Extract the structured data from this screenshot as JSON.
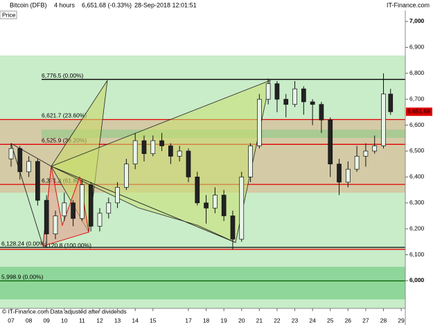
{
  "header": {
    "symbol": "Bitcoin (DFB)",
    "timeframe": "4 hours",
    "quote": "6,651.68 (-0.33%)",
    "timestamp": "28-Sep-2018 12:01:51",
    "site": "IT-Finance.com",
    "panel": "Price"
  },
  "footer": "© IT-Finance.com  Data adjusted after dividends",
  "chart_data": {
    "type": "candlestick",
    "x": [
      0,
      0.5,
      1,
      1.5,
      2,
      2.5,
      3,
      3.5,
      4,
      4.5,
      5,
      5.5,
      6,
      6.5,
      7,
      7.5,
      8,
      8.5,
      9,
      9.5,
      10,
      10.5,
      11,
      11.5,
      12,
      12.5,
      13,
      13.5,
      14,
      14.5,
      15,
      15.5,
      16,
      16.5,
      17,
      17.5,
      18,
      18.5,
      19,
      19.5,
      20,
      20.5,
      21,
      21.4
    ],
    "open": [
      6470,
      6510,
      6420,
      6460,
      6310,
      6180,
      6250,
      6300,
      6240,
      6370,
      6210,
      6260,
      6300,
      6360,
      6450,
      6540,
      6490,
      6540,
      6520,
      6480,
      6500,
      6400,
      6300,
      6280,
      6330,
      6250,
      6160,
      6400,
      6520,
      6700,
      6760,
      6700,
      6680,
      6740,
      6690,
      6680,
      6620,
      6450,
      6380,
      6430,
      6480,
      6500,
      6520,
      6720
    ],
    "high": [
      6530,
      6520,
      6480,
      6470,
      6330,
      6270,
      6340,
      6310,
      6390,
      6380,
      6280,
      6320,
      6380,
      6470,
      6570,
      6560,
      6560,
      6570,
      6530,
      6520,
      6510,
      6420,
      6330,
      6360,
      6350,
      6270,
      6420,
      6530,
      6720,
      6780,
      6770,
      6720,
      6770,
      6750,
      6700,
      6690,
      6630,
      6470,
      6460,
      6520,
      6530,
      6560,
      6800,
      6740
    ],
    "low": [
      6440,
      6390,
      6400,
      6290,
      6128,
      6160,
      6230,
      6210,
      6230,
      6190,
      6190,
      6240,
      6280,
      6350,
      6430,
      6460,
      6480,
      6500,
      6450,
      6460,
      6380,
      6290,
      6220,
      6260,
      6230,
      6120,
      6150,
      6380,
      6510,
      6680,
      6650,
      6630,
      6670,
      6640,
      6600,
      6570,
      6400,
      6330,
      6360,
      6420,
      6440,
      6490,
      6510,
      6640
    ],
    "close": [
      6510,
      6420,
      6460,
      6310,
      6180,
      6250,
      6300,
      6240,
      6370,
      6210,
      6260,
      6300,
      6360,
      6450,
      6540,
      6490,
      6540,
      6520,
      6480,
      6500,
      6400,
      6300,
      6280,
      6330,
      6250,
      6160,
      6400,
      6520,
      6700,
      6760,
      6700,
      6680,
      6740,
      6690,
      6680,
      6620,
      6450,
      6380,
      6430,
      6480,
      6500,
      6520,
      6720,
      6651.68
    ],
    "up_color": "#e8f5e8",
    "down_color": "#222222",
    "last": {
      "value": 6651.68,
      "label": "6,651.68",
      "color": "#e00000"
    },
    "xlim": [
      -0.625,
      22.23
    ],
    "xticks": [
      {
        "value": 0,
        "label": "07"
      },
      {
        "value": 1,
        "label": "08"
      },
      {
        "value": 2,
        "label": "09"
      },
      {
        "value": 3,
        "label": "10"
      },
      {
        "value": 4,
        "label": "11"
      },
      {
        "value": 5,
        "label": "12"
      },
      {
        "value": 6,
        "label": "13"
      },
      {
        "value": 7,
        "label": "14"
      },
      {
        "value": 8,
        "label": "15"
      },
      {
        "value": 10,
        "label": "17"
      },
      {
        "value": 11,
        "label": "18"
      },
      {
        "value": 12,
        "label": "19"
      },
      {
        "value": 13,
        "label": "20"
      },
      {
        "value": 14,
        "label": "21"
      },
      {
        "value": 15,
        "label": "22"
      },
      {
        "value": 16,
        "label": "23"
      },
      {
        "value": 17,
        "label": "24"
      },
      {
        "value": 18,
        "label": "25"
      },
      {
        "value": 19,
        "label": "26"
      },
      {
        "value": 20,
        "label": "27"
      },
      {
        "value": 21,
        "label": "28"
      },
      {
        "value": 22,
        "label": "29"
      }
    ],
    "ylim": [
      5893,
      7008
    ],
    "yticks": [
      {
        "value": 7000,
        "label": "7,000"
      },
      {
        "value": 6900,
        "label": "6,900"
      },
      {
        "value": 6800,
        "label": "6,800"
      },
      {
        "value": 6700,
        "label": "6,700"
      },
      {
        "value": 6600,
        "label": "6,600"
      },
      {
        "value": 6500,
        "label": "6,500"
      },
      {
        "value": 6400,
        "label": "6,400"
      },
      {
        "value": 6300,
        "label": "6,300"
      },
      {
        "value": 6200,
        "label": "6,200"
      },
      {
        "value": 6100,
        "label": "6,100"
      },
      {
        "value": 6000,
        "label": "6,000"
      }
    ],
    "levels": [
      {
        "value": 6776.5,
        "label": "6,776.5 (0.00%)",
        "color": "#000000"
      },
      {
        "value": 6621.7,
        "label": "6,621.7 (23.60%)",
        "color": "#e00000"
      },
      {
        "value": 6525.9,
        "label": "6,525.9 (38.20%)",
        "color": "#e00000"
      },
      {
        "value": 6371.3,
        "label": "6,371.3 (61.80%)",
        "color": "#e00000"
      },
      {
        "value": 6128.24,
        "label": "6,128.24 (0.00%)",
        "color": "#000000"
      },
      {
        "value": 6120.8,
        "label": "6,120.8 (100.00%)",
        "color": "#e00000"
      },
      {
        "value": 5998.9,
        "label": "5,998.9 (0.00%)",
        "color": "#006000"
      }
    ]
  }
}
